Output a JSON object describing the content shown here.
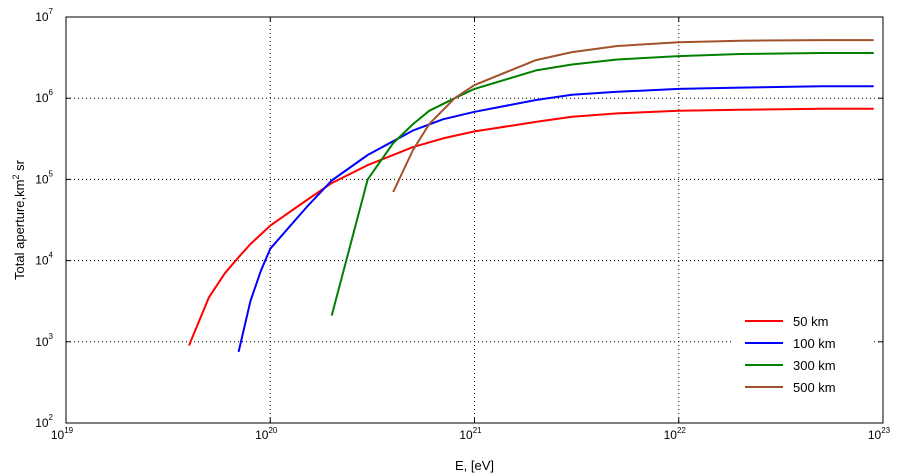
{
  "chart_data": {
    "type": "line",
    "xlabel": "E, [eV]",
    "ylabel_main": "Total aperture,km",
    "ylabel_sup": "2",
    "ylabel_tail": " sr",
    "x_scale": "log",
    "y_scale": "log",
    "xlim": [
      1e+19,
      1e+23
    ],
    "ylim": [
      100,
      10000000
    ],
    "grid": true,
    "legend_position": "bottom-right",
    "x_ticks": [
      {
        "base": "10",
        "exp": "19",
        "value": 1e+19
      },
      {
        "base": "10",
        "exp": "20",
        "value": 1e+20
      },
      {
        "base": "10",
        "exp": "21",
        "value": 1e+21
      },
      {
        "base": "10",
        "exp": "22",
        "value": 1e+22
      },
      {
        "base": "10",
        "exp": "23",
        "value": 1e+23
      }
    ],
    "y_ticks": [
      {
        "base": "10",
        "exp": "2",
        "value": 100
      },
      {
        "base": "10",
        "exp": "3",
        "value": 1000
      },
      {
        "base": "10",
        "exp": "4",
        "value": 10000
      },
      {
        "base": "10",
        "exp": "5",
        "value": 100000
      },
      {
        "base": "10",
        "exp": "6",
        "value": 1000000
      },
      {
        "base": "10",
        "exp": "7",
        "value": 10000000
      }
    ],
    "series": [
      {
        "name": "50 km",
        "color": "#ff0000",
        "x": [
          4e+19,
          5e+19,
          6e+19,
          7e+19,
          8e+19,
          1e+20,
          1.5e+20,
          2e+20,
          3e+20,
          5e+20,
          7e+20,
          1e+21,
          2e+21,
          3e+21,
          5e+21,
          1e+22,
          2e+22,
          5e+22,
          9e+22
        ],
        "y": [
          900,
          3500,
          7000,
          11000,
          16000,
          27000,
          55000,
          90000,
          150000,
          250000,
          320000,
          390000,
          510000,
          590000,
          650000,
          700000,
          720000,
          740000,
          740000
        ]
      },
      {
        "name": "100 km",
        "color": "#0000ff",
        "x": [
          7e+19,
          8e+19,
          9e+19,
          1e+20,
          1.5e+20,
          2e+20,
          3e+20,
          5e+20,
          7e+20,
          1e+21,
          2e+21,
          3e+21,
          5e+21,
          1e+22,
          2e+22,
          5e+22,
          9e+22
        ],
        "y": [
          750,
          3200,
          7500,
          14000,
          45000,
          97000,
          200000,
          400000,
          550000,
          680000,
          950000,
          1100000,
          1200000,
          1300000,
          1350000,
          1400000,
          1400000
        ]
      },
      {
        "name": "300 km",
        "color": "#008000",
        "x": [
          2e+20,
          3e+20,
          4e+20,
          5e+20,
          6e+20,
          8e+20,
          1e+21,
          2e+21,
          3e+21,
          5e+21,
          1e+22,
          2e+22,
          5e+22,
          9e+22
        ],
        "y": [
          2100,
          100000,
          280000,
          480000,
          700000,
          1000000,
          1300000,
          2200000,
          2600000,
          3000000,
          3300000,
          3500000,
          3600000,
          3600000
        ]
      },
      {
        "name": "500 km",
        "color": "#a0522d",
        "x": [
          4e+20,
          5e+20,
          6e+20,
          8e+20,
          1e+21,
          1.5e+21,
          2e+21,
          3e+21,
          5e+21,
          1e+22,
          2e+22,
          5e+22,
          9e+22
        ],
        "y": [
          70000,
          230000,
          480000,
          1000000,
          1450000,
          2200000,
          2950000,
          3700000,
          4400000,
          4900000,
          5100000,
          5200000,
          5200000
        ]
      }
    ]
  }
}
